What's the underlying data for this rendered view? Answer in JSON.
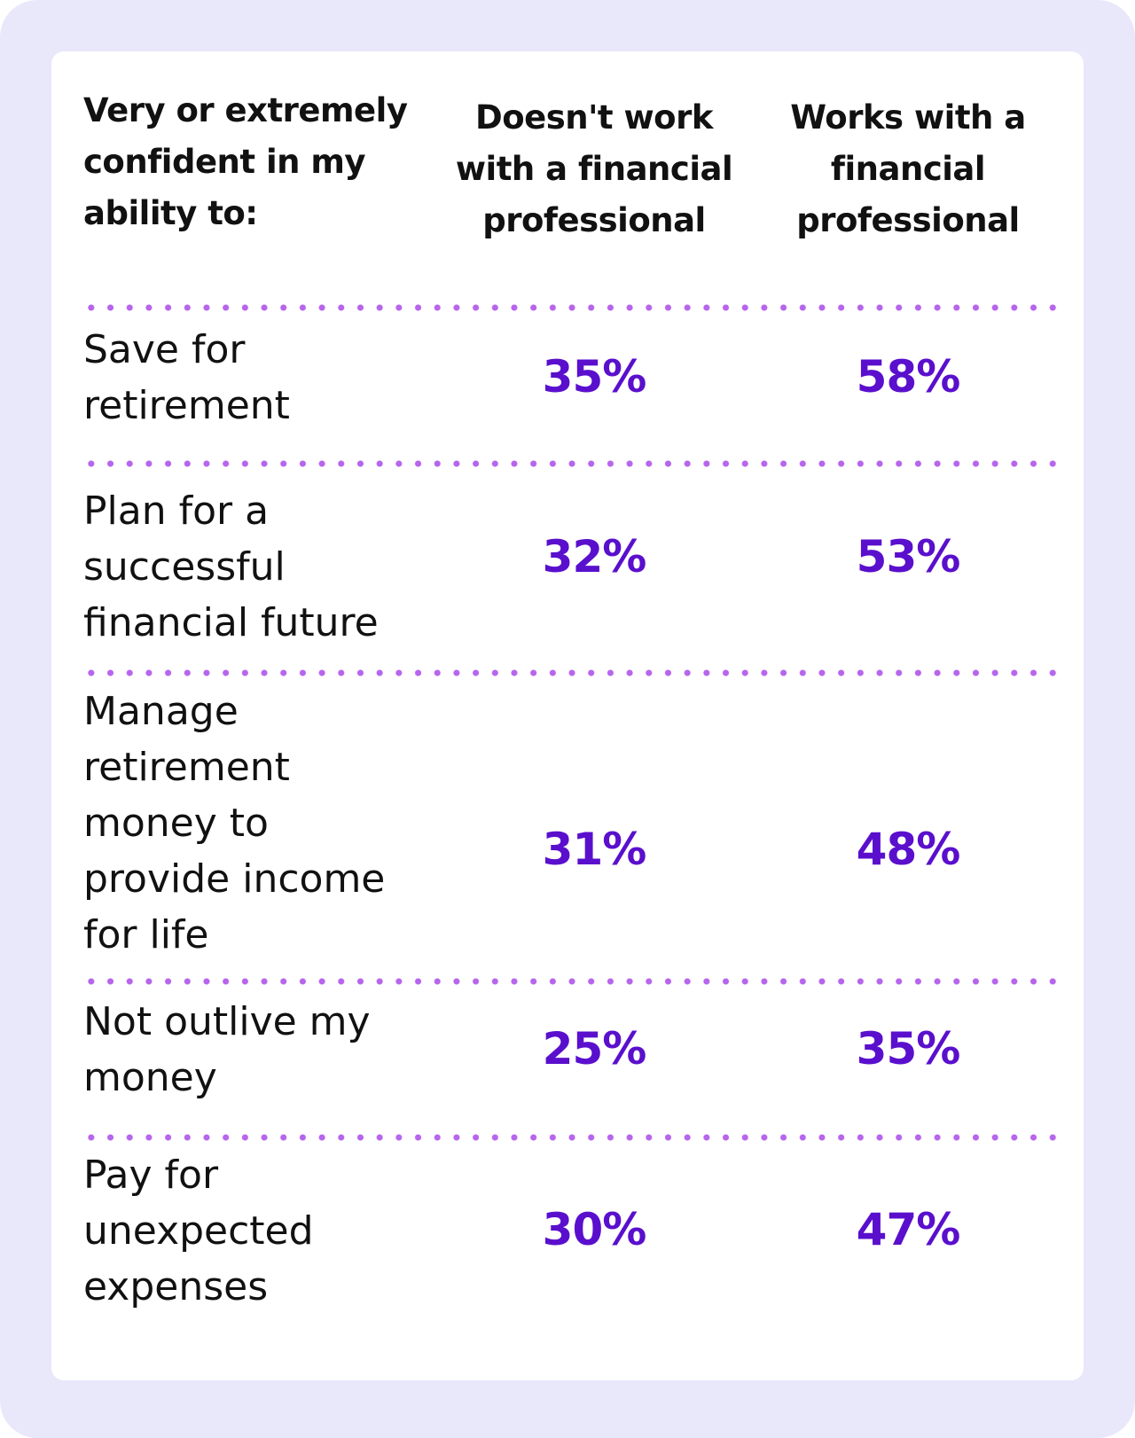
{
  "header": {
    "label": "Very or extremely confident in my ability to:",
    "col1": "Doesn't work with a financial professional",
    "col2": "Works with a financial professional"
  },
  "rows": [
    {
      "label": "Save for retirement",
      "without": "35%",
      "with": "58%"
    },
    {
      "label": "Plan for a successful financial future",
      "without": "32%",
      "with": "53%"
    },
    {
      "label": "Manage retirement money to provide income for life",
      "without": "31%",
      "with": "48%"
    },
    {
      "label": "Not outlive my money",
      "without": "25%",
      "with": "35%"
    },
    {
      "label": "Pay for unexpected expenses",
      "without": "30%",
      "with": "47%"
    }
  ],
  "colors": {
    "background": "#e9e7fa",
    "value": "#5a0fcd",
    "divider": "#b765ec"
  }
}
